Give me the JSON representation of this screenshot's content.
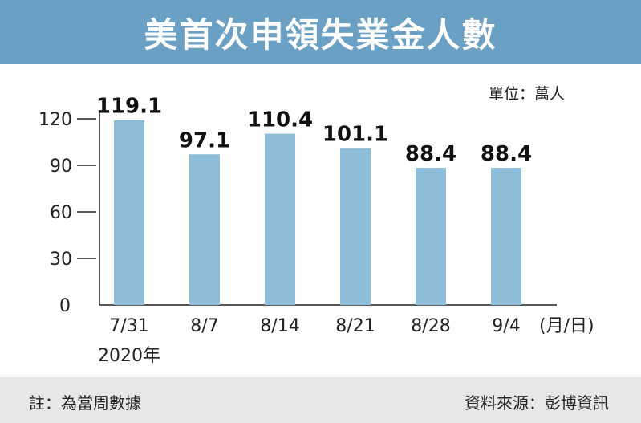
{
  "title": "美首次申領失業金人數",
  "unit": "單位：萬人",
  "note": "註：為當周數據",
  "source": "資料來源：彭博資訊",
  "chart_data": {
    "type": "bar",
    "title": "美首次申領失業金人數",
    "categories": [
      "7/31",
      "8/7",
      "8/14",
      "8/21",
      "8/28",
      "9/4"
    ],
    "values": [
      119.1,
      97.1,
      110.4,
      101.1,
      88.4,
      88.4
    ],
    "value_labels": [
      "119.1",
      "97.1",
      "110.4",
      "101.1",
      "88.4",
      "88.4"
    ],
    "x_year_label": "2020年",
    "x_unit_label": "(月/日)",
    "ylabel": "",
    "ylim": [
      0,
      120
    ],
    "yticks": [
      0,
      30,
      60,
      90,
      120
    ],
    "bar_color": "#8dbdd8",
    "grid": false
  }
}
